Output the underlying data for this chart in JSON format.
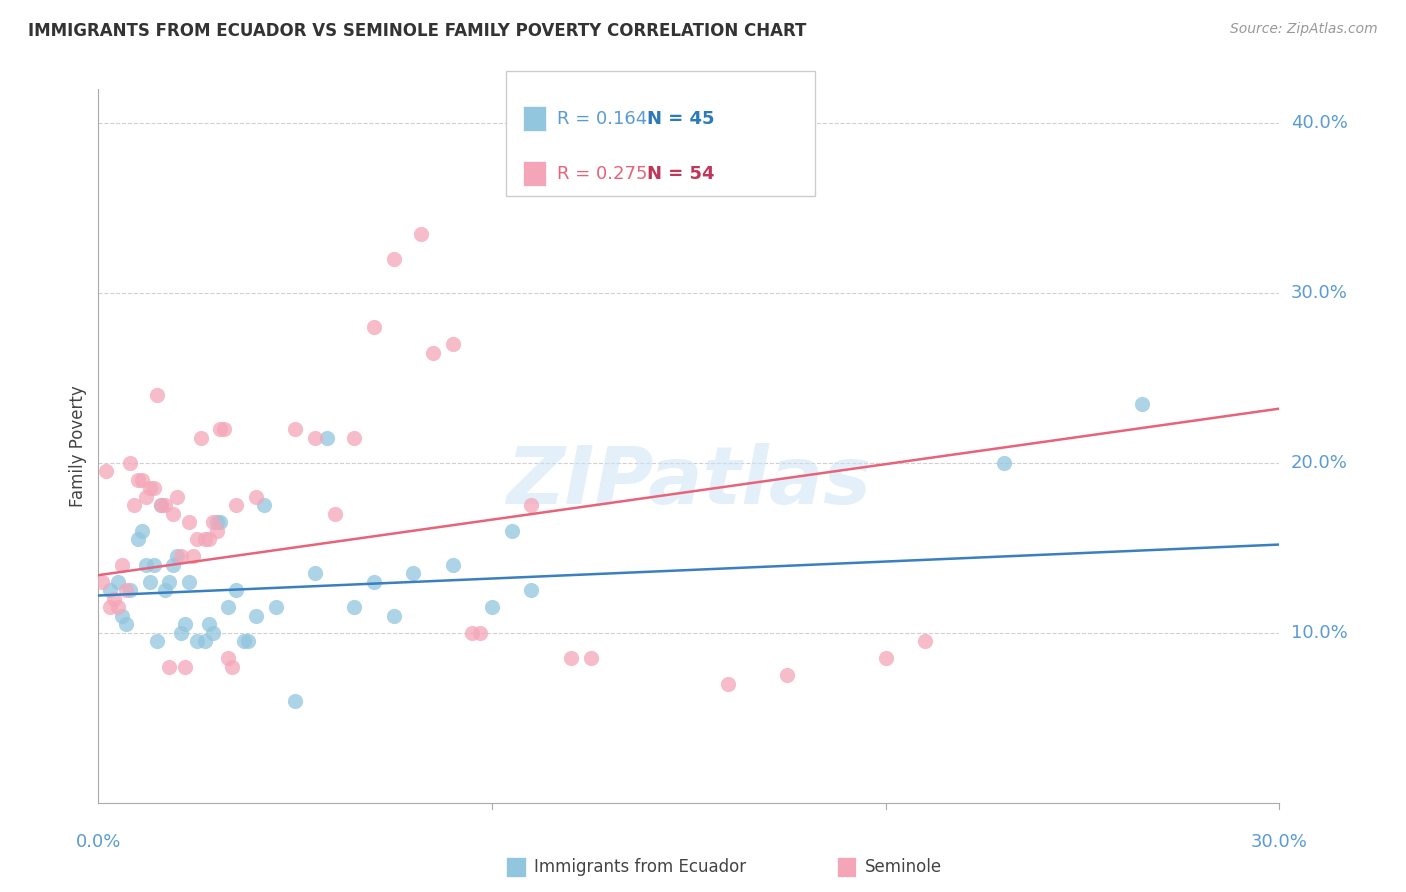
{
  "title": "IMMIGRANTS FROM ECUADOR VS SEMINOLE FAMILY POVERTY CORRELATION CHART",
  "source": "Source: ZipAtlas.com",
  "ylabel": "Family Poverty",
  "x_min": 0.0,
  "x_max": 0.3,
  "y_min": 0.0,
  "y_max": 0.42,
  "y_ticks": [
    0.1,
    0.2,
    0.3,
    0.4
  ],
  "y_tick_labels": [
    "10.0%",
    "20.0%",
    "30.0%",
    "40.0%"
  ],
  "blue_color": "#92c5de",
  "pink_color": "#f4a6b8",
  "blue_line_color": "#3a7fc1",
  "pink_line_color": "#e8637a",
  "tick_label_color": "#5b9bd5",
  "blue_scatter": [
    [
      0.003,
      0.125
    ],
    [
      0.005,
      0.13
    ],
    [
      0.006,
      0.11
    ],
    [
      0.007,
      0.105
    ],
    [
      0.008,
      0.125
    ],
    [
      0.01,
      0.155
    ],
    [
      0.011,
      0.16
    ],
    [
      0.012,
      0.14
    ],
    [
      0.013,
      0.13
    ],
    [
      0.014,
      0.14
    ],
    [
      0.015,
      0.095
    ],
    [
      0.016,
      0.175
    ],
    [
      0.017,
      0.125
    ],
    [
      0.018,
      0.13
    ],
    [
      0.019,
      0.14
    ],
    [
      0.02,
      0.145
    ],
    [
      0.021,
      0.1
    ],
    [
      0.022,
      0.105
    ],
    [
      0.023,
      0.13
    ],
    [
      0.025,
      0.095
    ],
    [
      0.027,
      0.095
    ],
    [
      0.028,
      0.105
    ],
    [
      0.029,
      0.1
    ],
    [
      0.03,
      0.165
    ],
    [
      0.031,
      0.165
    ],
    [
      0.033,
      0.115
    ],
    [
      0.035,
      0.125
    ],
    [
      0.037,
      0.095
    ],
    [
      0.038,
      0.095
    ],
    [
      0.04,
      0.11
    ],
    [
      0.042,
      0.175
    ],
    [
      0.045,
      0.115
    ],
    [
      0.05,
      0.06
    ],
    [
      0.055,
      0.135
    ],
    [
      0.058,
      0.215
    ],
    [
      0.065,
      0.115
    ],
    [
      0.07,
      0.13
    ],
    [
      0.075,
      0.11
    ],
    [
      0.08,
      0.135
    ],
    [
      0.09,
      0.14
    ],
    [
      0.1,
      0.115
    ],
    [
      0.105,
      0.16
    ],
    [
      0.11,
      0.125
    ],
    [
      0.23,
      0.2
    ],
    [
      0.265,
      0.235
    ]
  ],
  "pink_scatter": [
    [
      0.001,
      0.13
    ],
    [
      0.002,
      0.195
    ],
    [
      0.003,
      0.115
    ],
    [
      0.004,
      0.12
    ],
    [
      0.005,
      0.115
    ],
    [
      0.006,
      0.14
    ],
    [
      0.007,
      0.125
    ],
    [
      0.008,
      0.2
    ],
    [
      0.009,
      0.175
    ],
    [
      0.01,
      0.19
    ],
    [
      0.011,
      0.19
    ],
    [
      0.012,
      0.18
    ],
    [
      0.013,
      0.185
    ],
    [
      0.014,
      0.185
    ],
    [
      0.015,
      0.24
    ],
    [
      0.016,
      0.175
    ],
    [
      0.017,
      0.175
    ],
    [
      0.018,
      0.08
    ],
    [
      0.019,
      0.17
    ],
    [
      0.02,
      0.18
    ],
    [
      0.021,
      0.145
    ],
    [
      0.022,
      0.08
    ],
    [
      0.023,
      0.165
    ],
    [
      0.024,
      0.145
    ],
    [
      0.025,
      0.155
    ],
    [
      0.026,
      0.215
    ],
    [
      0.027,
      0.155
    ],
    [
      0.028,
      0.155
    ],
    [
      0.029,
      0.165
    ],
    [
      0.03,
      0.16
    ],
    [
      0.031,
      0.22
    ],
    [
      0.032,
      0.22
    ],
    [
      0.033,
      0.085
    ],
    [
      0.034,
      0.08
    ],
    [
      0.035,
      0.175
    ],
    [
      0.04,
      0.18
    ],
    [
      0.05,
      0.22
    ],
    [
      0.055,
      0.215
    ],
    [
      0.06,
      0.17
    ],
    [
      0.065,
      0.215
    ],
    [
      0.07,
      0.28
    ],
    [
      0.075,
      0.32
    ],
    [
      0.082,
      0.335
    ],
    [
      0.085,
      0.265
    ],
    [
      0.09,
      0.27
    ],
    [
      0.095,
      0.1
    ],
    [
      0.097,
      0.1
    ],
    [
      0.11,
      0.175
    ],
    [
      0.12,
      0.085
    ],
    [
      0.125,
      0.085
    ],
    [
      0.16,
      0.07
    ],
    [
      0.175,
      0.075
    ],
    [
      0.2,
      0.085
    ],
    [
      0.21,
      0.095
    ]
  ],
  "blue_line_x": [
    0.0,
    0.3
  ],
  "blue_line_y": [
    0.122,
    0.152
  ],
  "pink_line_x": [
    0.0,
    0.3
  ],
  "pink_line_y": [
    0.134,
    0.232
  ],
  "watermark": "ZIPatlas",
  "background_color": "#ffffff",
  "grid_color": "#d0d0d0"
}
